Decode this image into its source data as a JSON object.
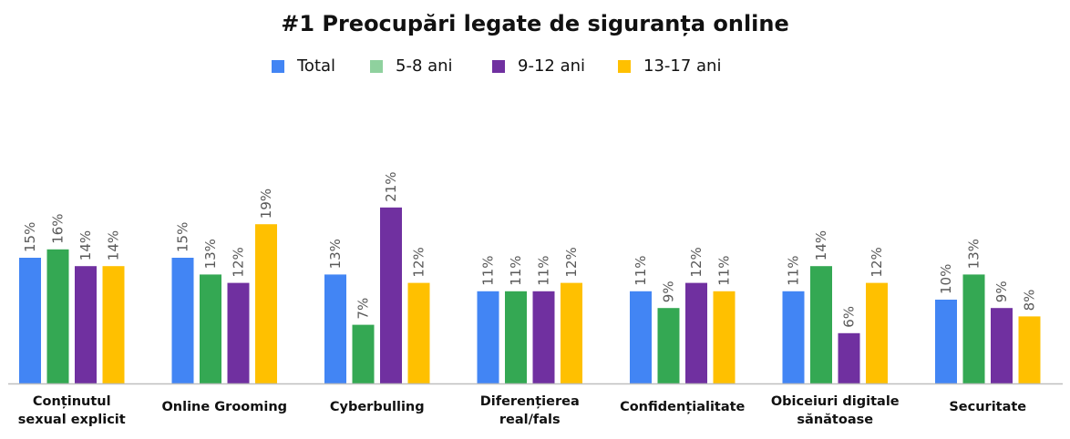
{
  "chart_data": {
    "type": "bar",
    "title": "#1 Preocupări legate de siguranța online",
    "categories": [
      "Conținutul sexual explicit",
      "Online Grooming",
      "Cyberbulling",
      "Diferențierea real/fals",
      "Confidențialitate",
      "Obiceiuri digitale sănătoase",
      "Securitate"
    ],
    "category_lines": [
      [
        "Conținutul",
        "sexual explicit"
      ],
      [
        "Online Grooming"
      ],
      [
        "Cyberbulling"
      ],
      [
        "Diferențierea",
        "real/fals"
      ],
      [
        "Confidențialitate"
      ],
      [
        "Obiceiuri digitale",
        "sănătoase"
      ],
      [
        "Securitate"
      ]
    ],
    "series": [
      {
        "name": "Total",
        "color": "#4285F4",
        "values": [
          15,
          15,
          13,
          11,
          11,
          11,
          10
        ],
        "labels": [
          "15%",
          "15%",
          "13%",
          "11%",
          "11%",
          "11%",
          "10%"
        ]
      },
      {
        "name": "5-8 ani",
        "color": "#34A853",
        "legend_color": "#8FD19E",
        "values": [
          16,
          13,
          7,
          11,
          9,
          14,
          13
        ],
        "labels": [
          "16%",
          "13%",
          "7%",
          "11%",
          "9%",
          "14%",
          "13%"
        ]
      },
      {
        "name": "9-12 ani",
        "color": "#7030A0",
        "values": [
          14,
          12,
          21,
          11,
          12,
          6,
          9
        ],
        "labels": [
          "14%",
          "12%",
          "21%",
          "11%",
          "12%",
          "6%",
          "9%"
        ]
      },
      {
        "name": "13-17 ani",
        "color": "#FFC000",
        "values": [
          14,
          19,
          12,
          12,
          11,
          12,
          8
        ],
        "labels": [
          "14%",
          "19%",
          "12%",
          "12%",
          "11%",
          "12%",
          "8%"
        ]
      }
    ],
    "ylim": [
      0,
      22
    ],
    "grid": false,
    "legend_position": "top-center",
    "axis_color": "#BFBFBF",
    "label_color": "#595959"
  }
}
